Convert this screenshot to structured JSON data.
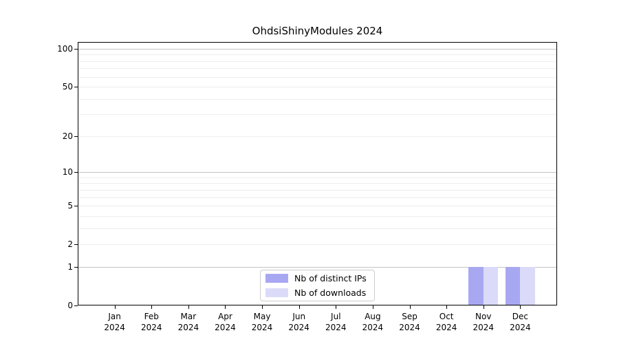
{
  "chart_data": {
    "type": "bar",
    "title": "OhdsiShinyModules 2024",
    "categories": [
      "Jan 2024",
      "Feb 2024",
      "Mar 2024",
      "Apr 2024",
      "May 2024",
      "Jun 2024",
      "Jul 2024",
      "Aug 2024",
      "Sep 2024",
      "Oct 2024",
      "Nov 2024",
      "Dec 2024"
    ],
    "series": [
      {
        "name": "Nb of distinct IPs",
        "color": "#a8a8f2",
        "values": [
          0,
          0,
          0,
          0,
          0,
          0,
          0,
          0,
          0,
          0,
          1,
          1
        ]
      },
      {
        "name": "Nb of downloads",
        "color": "#dbdbf9",
        "values": [
          0,
          0,
          0,
          0,
          0,
          0,
          0,
          0,
          0,
          0,
          1,
          1
        ]
      }
    ],
    "xlabel": "",
    "ylabel": "",
    "yscale": "log1p",
    "yticks": [
      0,
      1,
      2,
      5,
      10,
      20,
      50,
      100
    ],
    "ylim": [
      0,
      100
    ],
    "grid": true,
    "legend_position": "lower center"
  },
  "colors": {
    "background": "#ffffff",
    "axis": "#000000",
    "grid_decade": "#c3c3c3",
    "grid_minor": "#ededed",
    "legend_border": "#cccccc"
  }
}
